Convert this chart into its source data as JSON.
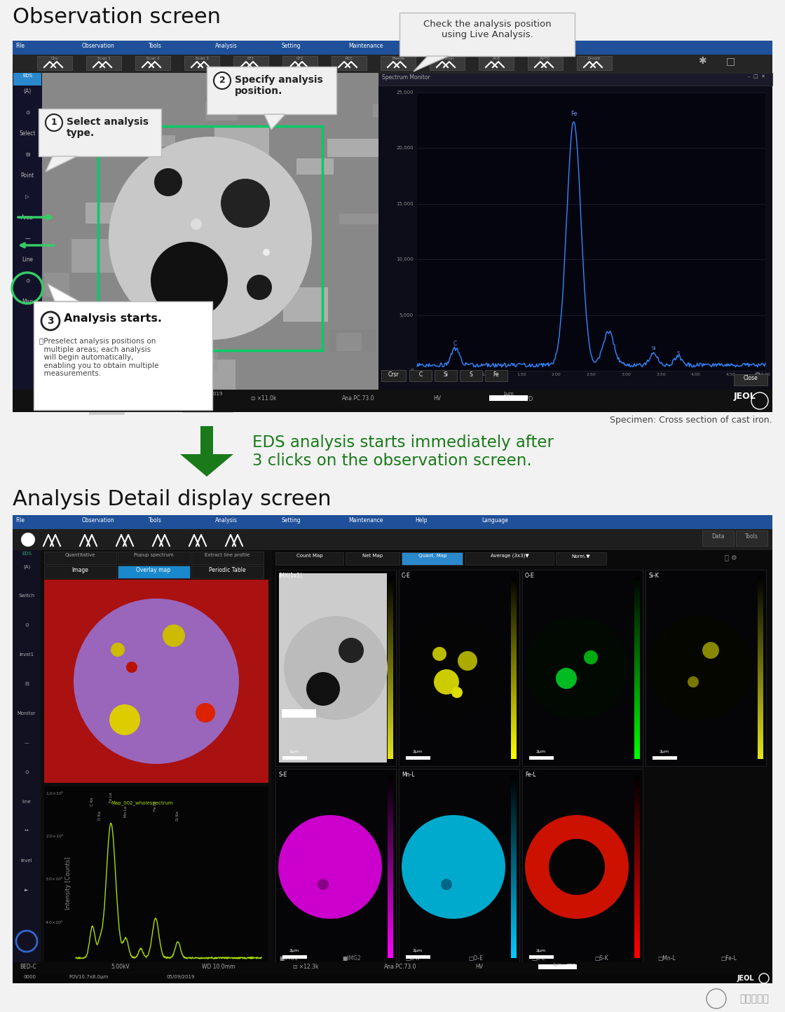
{
  "bg_color": "#f2f2f2",
  "title1": "Observation screen",
  "title2": "Analysis Detail display screen",
  "arrow_text_line1": "EDS analysis starts immediately after",
  "arrow_text_line2": "3 clicks on the observation screen.",
  "arrow_color": "#1a7a1a",
  "callout1_text": "Check the analysis position\nusing Live Analysis.",
  "callout2_text_a": "② Specify analysis",
  "callout2_text_b": "    position.",
  "callout3_text_a": "① Select analysis",
  "callout3_text_b": "    type.",
  "callout4_title": "③ Analysis starts.",
  "callout4_sub": "＊Preselect analysis positions on\n  multiple areas; each analysis\n  will begin automatically,\n  enabling you to obtain multiple\n  measurements.",
  "specimen_text": "Specimen: Cross section of cast iron.",
  "white": "#ffffff",
  "black": "#000000",
  "light_gray": "#e8e8e8"
}
